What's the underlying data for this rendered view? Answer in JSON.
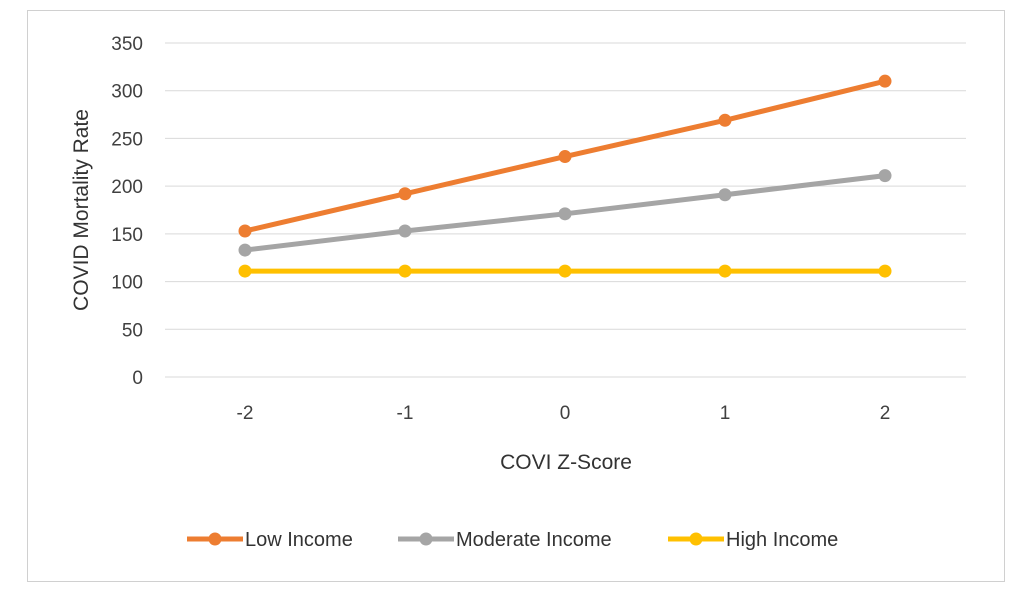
{
  "chart_data": {
    "type": "line",
    "title": "",
    "xlabel": "COVI Z-Score",
    "ylabel": "COVID Mortality Rate",
    "x": [
      -2,
      -1,
      0,
      1,
      2
    ],
    "x_tick_labels": [
      "-2",
      "-1",
      "0",
      "1",
      "2"
    ],
    "ylim": [
      0,
      350
    ],
    "y_ticks": [
      0,
      50,
      100,
      150,
      200,
      250,
      300,
      350
    ],
    "grid": true,
    "legend_position": "bottom",
    "series": [
      {
        "name": "Low Income",
        "color": "#ED7D31",
        "values": [
          153,
          192,
          231,
          269,
          310
        ]
      },
      {
        "name": "Moderate Income",
        "color": "#A5A5A5",
        "values": [
          133,
          153,
          171,
          191,
          211
        ]
      },
      {
        "name": "High Income",
        "color": "#FFC000",
        "values": [
          111,
          111,
          111,
          111,
          111
        ]
      }
    ]
  }
}
